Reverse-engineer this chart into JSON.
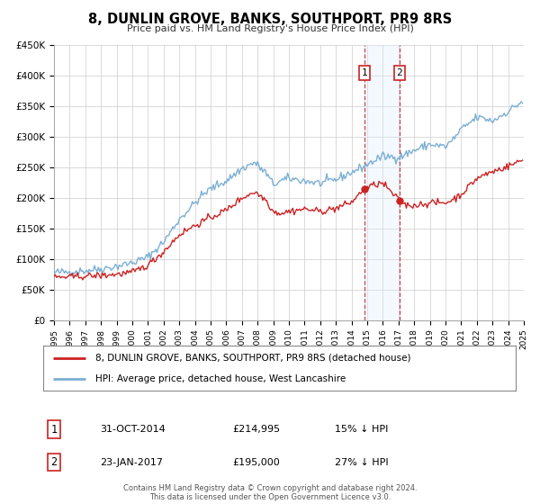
{
  "title": "8, DUNLIN GROVE, BANKS, SOUTHPORT, PR9 8RS",
  "subtitle": "Price paid vs. HM Land Registry's House Price Index (HPI)",
  "legend_line1": "8, DUNLIN GROVE, BANKS, SOUTHPORT, PR9 8RS (detached house)",
  "legend_line2": "HPI: Average price, detached house, West Lancashire",
  "transaction1_label": "1",
  "transaction1_date": "31-OCT-2014",
  "transaction1_price": "£214,995",
  "transaction1_hpi": "15% ↓ HPI",
  "transaction2_label": "2",
  "transaction2_date": "23-JAN-2017",
  "transaction2_price": "£195,000",
  "transaction2_hpi": "27% ↓ HPI",
  "footnote": "Contains HM Land Registry data © Crown copyright and database right 2024.\nThis data is licensed under the Open Government Licence v3.0.",
  "transaction1_x": 2014.83,
  "transaction2_x": 2017.06,
  "transaction1_y": 214995,
  "transaction2_y": 195000,
  "hpi_color": "#7bafd4",
  "price_color": "#cc2222",
  "marker_color": "#cc2222",
  "vline_color": "#cc2222",
  "shade_color": "#ddeeff",
  "background_color": "#ffffff",
  "grid_color": "#cccccc",
  "ylim": [
    0,
    450000
  ],
  "xlim_start": 1995,
  "xlim_end": 2025,
  "hpi_anchors": [
    [
      1995.0,
      78000
    ],
    [
      1996.0,
      79000
    ],
    [
      1997.0,
      81000
    ],
    [
      1998.0,
      84000
    ],
    [
      1999.0,
      88000
    ],
    [
      2000.0,
      94000
    ],
    [
      2001.0,
      103000
    ],
    [
      2002.0,
      128000
    ],
    [
      2003.0,
      165000
    ],
    [
      2004.0,
      192000
    ],
    [
      2004.5,
      205000
    ],
    [
      2005.0,
      215000
    ],
    [
      2006.0,
      228000
    ],
    [
      2007.0,
      248000
    ],
    [
      2007.8,
      258000
    ],
    [
      2008.5,
      242000
    ],
    [
      2009.0,
      222000
    ],
    [
      2009.5,
      228000
    ],
    [
      2010.0,
      232000
    ],
    [
      2011.0,
      228000
    ],
    [
      2012.0,
      224000
    ],
    [
      2013.0,
      230000
    ],
    [
      2014.0,
      242000
    ],
    [
      2014.83,
      252000
    ],
    [
      2015.5,
      262000
    ],
    [
      2016.0,
      268000
    ],
    [
      2017.06,
      267000
    ],
    [
      2018.0,
      278000
    ],
    [
      2019.0,
      288000
    ],
    [
      2020.0,
      284000
    ],
    [
      2020.5,
      296000
    ],
    [
      2021.0,
      312000
    ],
    [
      2022.0,
      332000
    ],
    [
      2022.5,
      330000
    ],
    [
      2023.0,
      326000
    ],
    [
      2024.0,
      342000
    ],
    [
      2024.9,
      358000
    ]
  ],
  "price_anchors": [
    [
      1995.0,
      70000
    ],
    [
      1996.0,
      70500
    ],
    [
      1997.0,
      72000
    ],
    [
      1998.0,
      73000
    ],
    [
      1999.0,
      75000
    ],
    [
      2000.0,
      78000
    ],
    [
      2001.0,
      90000
    ],
    [
      2002.0,
      112000
    ],
    [
      2003.0,
      140000
    ],
    [
      2004.0,
      155000
    ],
    [
      2005.0,
      168000
    ],
    [
      2006.0,
      180000
    ],
    [
      2007.0,
      200000
    ],
    [
      2007.8,
      210000
    ],
    [
      2008.5,
      198000
    ],
    [
      2009.0,
      178000
    ],
    [
      2009.5,
      175000
    ],
    [
      2010.0,
      178000
    ],
    [
      2011.0,
      182000
    ],
    [
      2012.0,
      178000
    ],
    [
      2013.0,
      183000
    ],
    [
      2014.0,
      193000
    ],
    [
      2014.83,
      214995
    ],
    [
      2015.5,
      222000
    ],
    [
      2016.0,
      224000
    ],
    [
      2017.06,
      195000
    ],
    [
      2017.5,
      188000
    ],
    [
      2018.0,
      188000
    ],
    [
      2019.0,
      192000
    ],
    [
      2020.0,
      192000
    ],
    [
      2020.5,
      198000
    ],
    [
      2021.0,
      206000
    ],
    [
      2022.0,
      232000
    ],
    [
      2022.5,
      238000
    ],
    [
      2023.0,
      243000
    ],
    [
      2024.0,
      252000
    ],
    [
      2024.9,
      262000
    ]
  ]
}
